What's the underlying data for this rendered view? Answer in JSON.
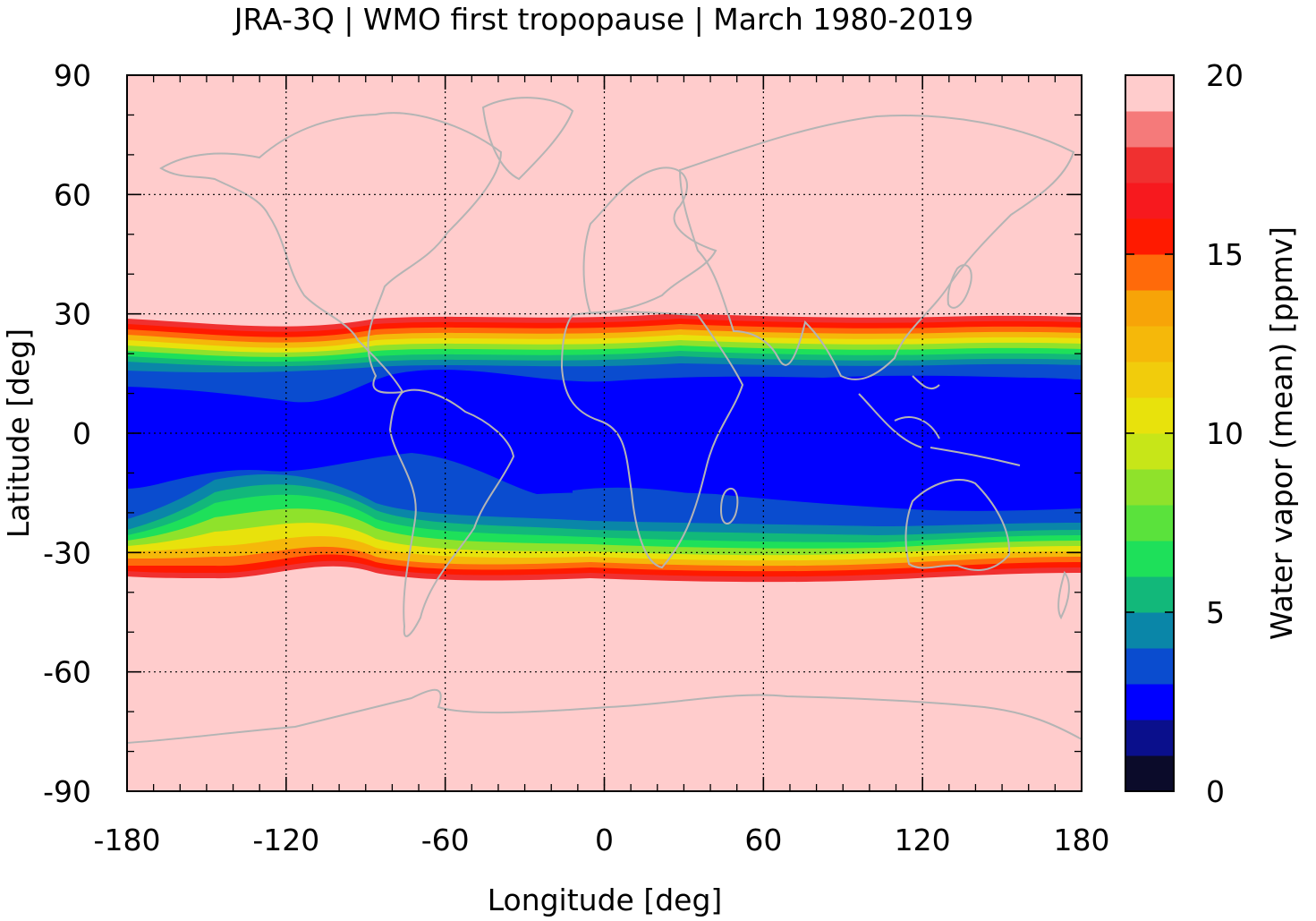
{
  "title": "JRA-3Q | WMO first tropopause | March 1980-2019",
  "chart_data": {
    "type": "heatmap",
    "title": "JRA-3Q | WMO first tropopause | March 1980-2019",
    "xlabel": "Longitude [deg]",
    "ylabel": "Latitude [deg]",
    "colorbar_label": "Water vapor (mean) [ppmv]",
    "xlim": [
      -180,
      180
    ],
    "ylim": [
      -90,
      90
    ],
    "x_ticks": [
      "-180",
      "-120",
      "-60",
      "0",
      "60",
      "120",
      "180"
    ],
    "y_ticks": [
      "90",
      "60",
      "30",
      "0",
      "-30",
      "-60",
      "-90"
    ],
    "colorbar_range": [
      0,
      20
    ],
    "colorbar_ticks": [
      "20",
      "15",
      "10",
      "5",
      "0"
    ],
    "colorbar_levels": [
      {
        "from": 0,
        "to": 1,
        "color": "#0b0b2a"
      },
      {
        "from": 1,
        "to": 2,
        "color": "#0a0f8c"
      },
      {
        "from": 2,
        "to": 3,
        "color": "#0000ff"
      },
      {
        "from": 3,
        "to": 4,
        "color": "#0a4ccf"
      },
      {
        "from": 4,
        "to": 5,
        "color": "#0a86a8"
      },
      {
        "from": 5,
        "to": 6,
        "color": "#12b87a"
      },
      {
        "from": 6,
        "to": 7,
        "color": "#1ee05a"
      },
      {
        "from": 7,
        "to": 8,
        "color": "#5ae23c"
      },
      {
        "from": 8,
        "to": 9,
        "color": "#8fe22b"
      },
      {
        "from": 9,
        "to": 10,
        "color": "#c7e618"
      },
      {
        "from": 10,
        "to": 11,
        "color": "#e8e20c"
      },
      {
        "from": 11,
        "to": 12,
        "color": "#f1cc0c"
      },
      {
        "from": 12,
        "to": 13,
        "color": "#f5b80a"
      },
      {
        "from": 13,
        "to": 14,
        "color": "#f7a408"
      },
      {
        "from": 14,
        "to": 15,
        "color": "#ff6a0a"
      },
      {
        "from": 15,
        "to": 16,
        "color": "#ff1a00"
      },
      {
        "from": 16,
        "to": 17,
        "color": "#f7191e"
      },
      {
        "from": 17,
        "to": 18,
        "color": "#f03030"
      },
      {
        "from": 18,
        "to": 19,
        "color": "#f57a7a"
      },
      {
        "from": 19,
        "to": 20,
        "color": "#ffcccc"
      }
    ],
    "fields": {
      "extratropics_value": 20,
      "tropical_core_value": 2.5,
      "tropical_core_lat_range": [
        -22,
        15
      ],
      "tropical_band_edges_lat": [
        -35,
        28
      ]
    },
    "grid": true,
    "coastlines": true,
    "coastline_color": "#b4b4b4"
  }
}
